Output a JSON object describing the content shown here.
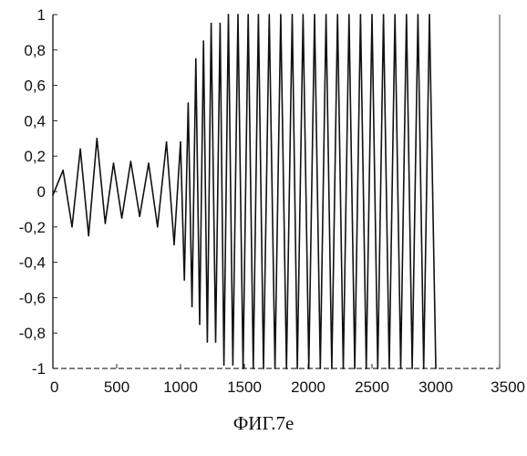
{
  "chart_data": {
    "type": "line",
    "caption": "ФИГ.7е",
    "xlim": [
      0,
      3500
    ],
    "ylim": [
      -1,
      1
    ],
    "x_ticks": [
      0,
      500,
      1000,
      1500,
      2000,
      2500,
      3000,
      3500
    ],
    "x_tick_labels": [
      "0",
      "500",
      "1000",
      "1500",
      "2000",
      "2500",
      "3000",
      "3500"
    ],
    "y_ticks": [
      1,
      0.8,
      0.6,
      0.4,
      0.2,
      0,
      -0.2,
      -0.4,
      -0.6,
      -0.8,
      -1
    ],
    "y_tick_labels": [
      "1",
      "0,8",
      "0,6",
      "0,4",
      "0,2",
      "0",
      "-0,2",
      "-0,4",
      "-0,6",
      "-0,8",
      "-1"
    ],
    "grid": false,
    "series": [
      {
        "color": "#111111",
        "x": [
          0,
          80,
          150,
          215,
          280,
          345,
          410,
          475,
          540,
          610,
          680,
          750,
          820,
          890,
          950,
          1000,
          1030,
          1060,
          1090,
          1120,
          1150,
          1180,
          1210,
          1240,
          1275,
          1310,
          1340,
          1375,
          1410,
          1450,
          1490,
          1530,
          1570,
          1610,
          1650,
          1695,
          1740,
          1785,
          1830,
          1875,
          1915,
          1960,
          2005,
          2050,
          2095,
          2140,
          2185,
          2230,
          2275,
          2320,
          2365,
          2410,
          2455,
          2500,
          2545,
          2590,
          2635,
          2680,
          2725,
          2770,
          2815,
          2860,
          2905,
          2950,
          3000
        ],
        "y": [
          -0.02,
          0.12,
          -0.2,
          0.24,
          -0.25,
          0.3,
          -0.18,
          0.16,
          -0.15,
          0.17,
          -0.14,
          0.16,
          -0.2,
          0.28,
          -0.3,
          0.28,
          -0.5,
          0.5,
          -0.65,
          0.75,
          -0.75,
          0.85,
          -0.85,
          0.95,
          -0.85,
          0.95,
          -0.98,
          1,
          -0.98,
          1,
          -1,
          1,
          -1,
          1,
          -1,
          1,
          -1,
          1,
          -1,
          1,
          -1,
          1,
          -1,
          1,
          -1,
          1,
          -1,
          1,
          -1,
          1,
          -1,
          1,
          -1,
          1,
          -1,
          1,
          -1,
          1,
          -1,
          1,
          -1,
          1,
          -1,
          1,
          -1
        ]
      }
    ]
  }
}
